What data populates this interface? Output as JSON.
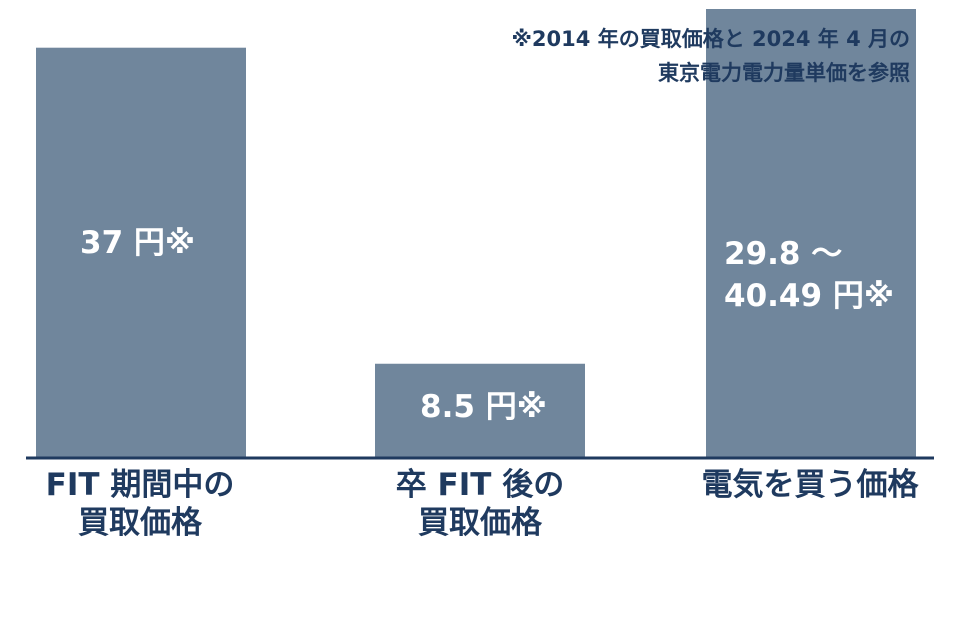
{
  "note": {
    "line1": "※2014 年の買取価格と 2024 年 4 月の",
    "line2": "東京電力電力量単価を参照"
  },
  "colors": {
    "bar": "#70869c",
    "axis": "#1f3a5f",
    "text_dark": "#1f3a5f",
    "text_light": "#ffffff"
  },
  "chart_data": {
    "type": "bar",
    "categories": [
      [
        "FIT 期間中の",
        "買取価格"
      ],
      [
        "卒 FIT 後の",
        "買取価格"
      ],
      [
        "電気を買う価格"
      ]
    ],
    "values": [
      37,
      8.5,
      40.49
    ],
    "value_ranges": [
      null,
      null,
      [
        29.8,
        40.49
      ]
    ],
    "data_labels": [
      [
        "37 円※"
      ],
      [
        "8.5 円※"
      ],
      [
        "29.8 ～",
        "40.49 円※"
      ]
    ],
    "unit": "円",
    "ylim": [
      0,
      40.49
    ],
    "grid": false,
    "legend": "none"
  }
}
